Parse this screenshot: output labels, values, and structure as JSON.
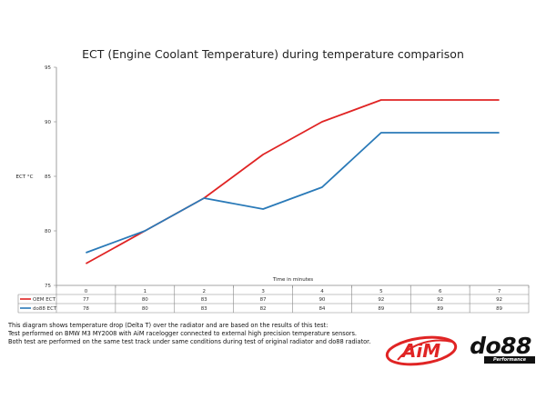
{
  "chart_data": {
    "type": "line",
    "title": "ECT (Engine Coolant Temperature) during temperature comparison",
    "xlabel": "Time in minutes",
    "ylabel": "ECT °C",
    "categories": [
      "0",
      "1",
      "2",
      "3",
      "4",
      "5",
      "6",
      "7"
    ],
    "ylim": [
      75,
      95
    ],
    "yticks": [
      75,
      80,
      85,
      90,
      95
    ],
    "grid": false,
    "legend": "data-table",
    "series": [
      {
        "name": "OEM ECT",
        "color": "#e02424",
        "values": [
          77,
          80,
          83,
          87,
          90,
          92,
          92,
          92
        ]
      },
      {
        "name": "do88 ECT",
        "color": "#2a7ab8",
        "values": [
          78,
          80,
          83,
          82,
          84,
          89,
          89,
          89
        ]
      }
    ]
  },
  "notes": [
    "This diagram shows temperature drop (Delta T) over the radiator and are based on the results of this test:",
    "Test performed on BMW M3 MY2008 with AiM racelogger connected to external high precision temperature sensors.",
    "Both test are performed on the same test track under same conditions during test of original radiator and do88 radiator."
  ],
  "logos": {
    "aim": {
      "text": "AiM",
      "color": "#e02424"
    },
    "do88": {
      "text": "do88",
      "subtitle": "Performance"
    }
  }
}
